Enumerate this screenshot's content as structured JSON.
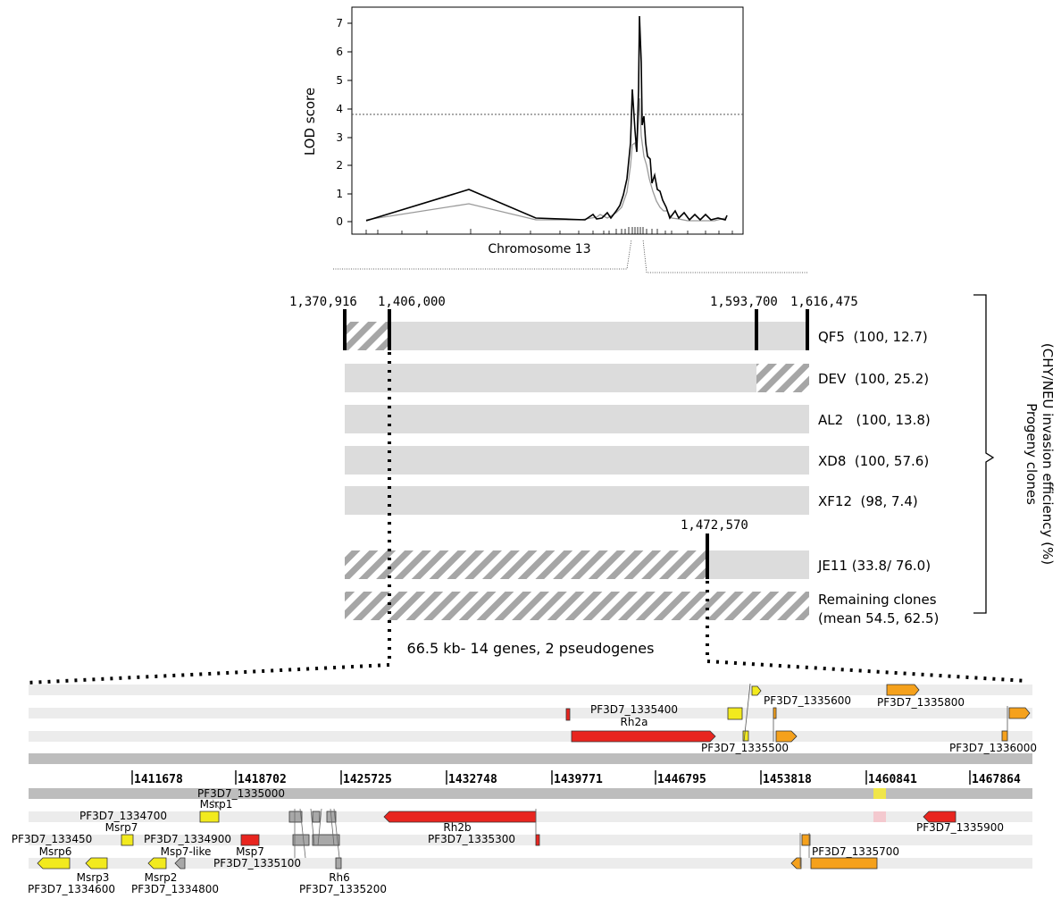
{
  "lod_plot": {
    "ylabel": "LOD score",
    "xlabel": "Chromosome 13",
    "yticks": [
      "0",
      "1",
      "2",
      "3",
      "4",
      "5",
      "6",
      "7"
    ],
    "threshold": 3.75,
    "colors": {
      "line1": "#000000",
      "line2": "#9a9a9a"
    }
  },
  "markers": {
    "left_outer": "1,370,916",
    "left_inner": "1,406,000",
    "right_inner": "1,593,700",
    "right_outer": "1,616,475",
    "je11": "1,472,570"
  },
  "clones": [
    {
      "name": "QF5  (100, 12.7)"
    },
    {
      "name": "DEV  (100, 25.2)"
    },
    {
      "name": "AL2   (100, 13.8)"
    },
    {
      "name": "XD8  (100, 57.6)"
    },
    {
      "name": "XF12  (98, 7.4)"
    },
    {
      "name": "JE11 (33.8/ 76.0)"
    },
    {
      "name_line1": "Remaining clones",
      "name_line2": "(mean 54.5, 62.5)"
    }
  ],
  "bracket_label_line1": "Progeny clones",
  "bracket_label_line2": "(CHY/NEU invasion efficiency (%)",
  "region_label": "66.5 kb- 14 genes, 2 pseudogenes",
  "coords": [
    "1411678",
    "1418702",
    "1425725",
    "1432748",
    "1439771",
    "1446795",
    "1453818",
    "1460841",
    "1467864"
  ],
  "genes_top": {
    "pf3d7_1335400": "PF3D7_1335400",
    "rh2a": "Rh2a",
    "pf3d7_1335500": "PF3D7_1335500",
    "pf3d7_1335600": "PF3D7_1335600",
    "pf3d7_1335800": "PF3D7_1335800",
    "pf3d7_1336000": "PF3D7_1336000"
  },
  "genes_bottom": {
    "pf3d7_1335000": "PF3D7_1335000",
    "msrp1": "Msrp1",
    "pf3d7_1334700": "PF3D7_1334700",
    "msrp7": "Msrp7",
    "pf3d7_133450": "PF3D7_133450",
    "pf3d7_1334900": "PF3D7_1334900",
    "msrp6": "Msrp6",
    "msp7_like": "Msp7-like",
    "msp7": "Msp7",
    "pf3d7_1335100": "PF3D7_1335100",
    "rh2b": "Rh2b",
    "pf3d7_1335300": "PF3D7_1335300",
    "pf3d7_1335900": "PF3D7_1335900",
    "pf3d7_1335700": "PF3D7_1335700",
    "msrp3": "Msrp3",
    "pf3d7_1334600": "PF3D7_1334600",
    "msrp2": "Msrp2",
    "pf3d7_1334800": "PF3D7_1334800",
    "rh6": "Rh6",
    "pf3d7_1335200": "PF3D7_1335200"
  },
  "colors": {
    "bar_gray": "#dcdcdc",
    "track_light": "#ececec",
    "track_dark": "#bdbdbd",
    "red": "#e8251f",
    "orange": "#f5a11c",
    "yellow": "#f2ea1e",
    "gene_gray": "#a8a8a8"
  }
}
